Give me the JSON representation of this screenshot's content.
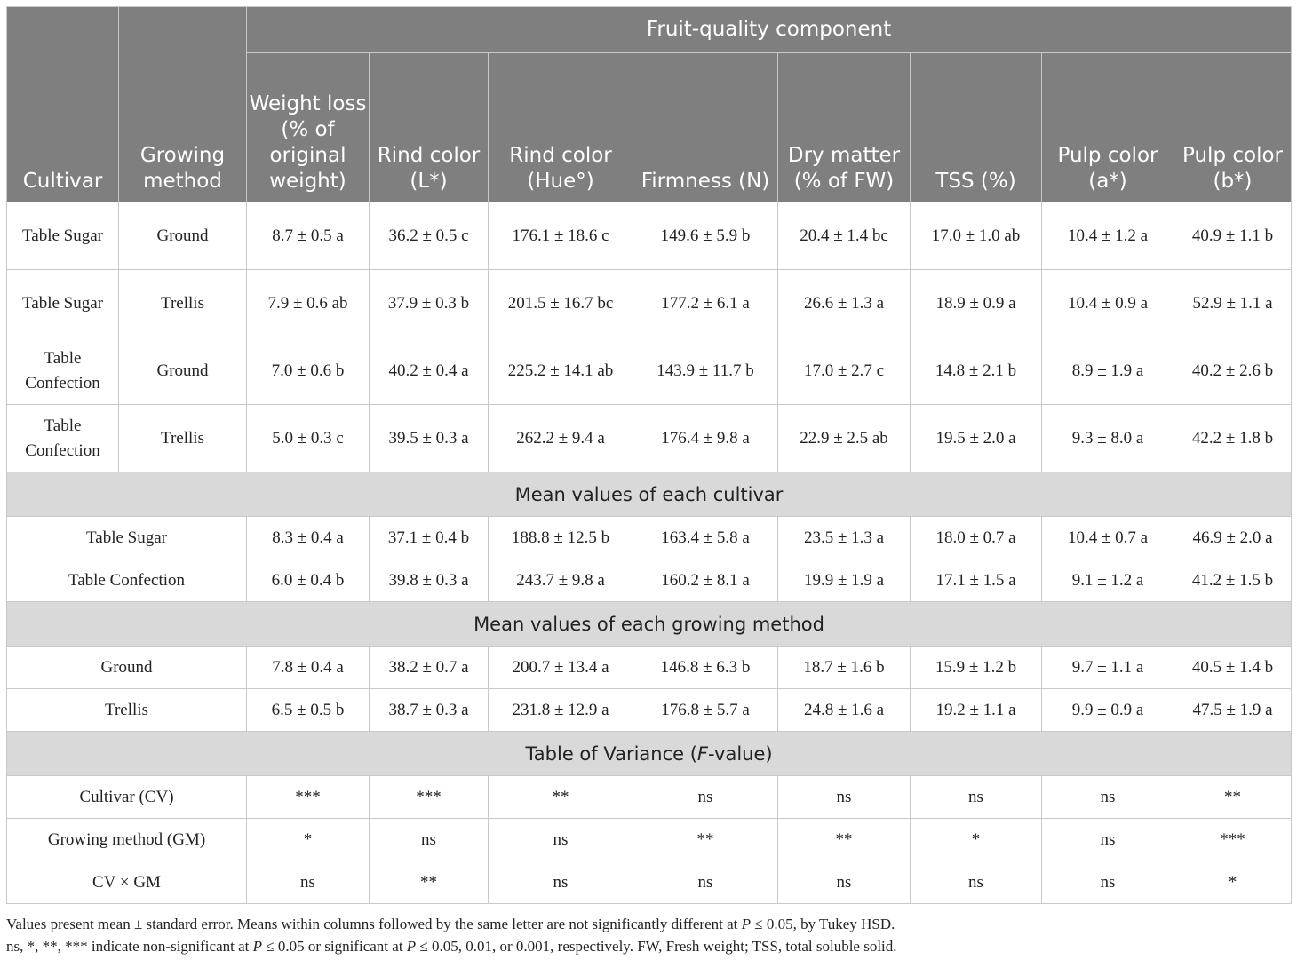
{
  "header": {
    "group_title": "Fruit-quality component",
    "columns": {
      "cultivar": "Cultivar",
      "growing_method": "Growing method",
      "weight_loss": "Weight loss (% of original weight)",
      "rind_l": "Rind color (L*)",
      "rind_hue": "Rind color (Hue°)",
      "firmness": "Firmness (N)",
      "dry_matter": "Dry matter (% of FW)",
      "tss": "TSS (%)",
      "pulp_a": "Pulp color (a*)",
      "pulp_b": "Pulp color (b*)"
    }
  },
  "treatments": [
    {
      "cultivar": "Table Sugar",
      "method": "Ground",
      "values": [
        "8.7 ± 0.5 a",
        "36.2 ± 0.5 c",
        "176.1 ± 18.6 c",
        "149.6 ± 5.9 b",
        "20.4 ± 1.4 bc",
        "17.0 ± 1.0 ab",
        "10.4 ± 1.2 a",
        "40.9 ± 1.1 b"
      ]
    },
    {
      "cultivar": "Table Sugar",
      "method": "Trellis",
      "values": [
        "7.9 ± 0.6 ab",
        "37.9 ± 0.3 b",
        "201.5 ± 16.7 bc",
        "177.2 ± 6.1 a",
        "26.6 ± 1.3 a",
        "18.9 ± 0.9 a",
        "10.4 ± 0.9 a",
        "52.9 ± 1.1 a"
      ]
    },
    {
      "cultivar": "Table Confection",
      "method": "Ground",
      "values": [
        "7.0 ± 0.6 b",
        "40.2 ± 0.4 a",
        "225.2 ± 14.1 ab",
        "143.9 ± 11.7 b",
        "17.0 ± 2.7 c",
        "14.8 ± 2.1 b",
        "8.9 ± 1.9 a",
        "40.2 ± 2.6 b"
      ]
    },
    {
      "cultivar": "Table Confection",
      "method": "Trellis",
      "values": [
        "5.0 ± 0.3 c",
        "39.5 ± 0.3 a",
        "262.2 ± 9.4 a",
        "176.4 ± 9.8 a",
        "22.9 ± 2.5 ab",
        "19.5 ± 2.0 a",
        "9.3 ± 8.0 a",
        "42.2 ± 1.8 b"
      ]
    }
  ],
  "cultivar_means": {
    "title": "Mean values of each cultivar",
    "rows": [
      {
        "label": "Table Sugar",
        "values": [
          "8.3 ± 0.4 a",
          "37.1 ± 0.4 b",
          "188.8 ± 12.5 b",
          "163.4 ± 5.8 a",
          "23.5 ± 1.3 a",
          "18.0 ± 0.7 a",
          "10.4 ± 0.7 a",
          "46.9 ± 2.0 a"
        ]
      },
      {
        "label": "Table Confection",
        "values": [
          "6.0 ± 0.4 b",
          "39.8 ± 0.3 a",
          "243.7 ± 9.8 a",
          "160.2 ± 8.1 a",
          "19.9 ± 1.9 a",
          "17.1 ± 1.5 a",
          "9.1 ± 1.2 a",
          "41.2 ± 1.5 b"
        ]
      }
    ]
  },
  "method_means": {
    "title": "Mean values of each growing method",
    "rows": [
      {
        "label": "Ground",
        "values": [
          "7.8 ± 0.4 a",
          "38.2 ± 0.7 a",
          "200.7 ± 13.4 a",
          "146.8 ± 6.3 b",
          "18.7 ± 1.6 b",
          "15.9 ± 1.2 b",
          "9.7 ± 1.1 a",
          "40.5 ± 1.4 b"
        ]
      },
      {
        "label": "Trellis",
        "values": [
          "6.5 ± 0.5 b",
          "38.7 ± 0.3 a",
          "231.8 ± 12.9 a",
          "176.8 ± 5.7 a",
          "24.8 ± 1.6 a",
          "19.2 ± 1.1 a",
          "9.9 ± 0.9 a",
          "47.5 ± 1.9 a"
        ]
      }
    ]
  },
  "variance": {
    "title_pre": "Table of Variance (",
    "title_italic": "F",
    "title_post": "-value)",
    "rows": [
      {
        "label": "Cultivar (CV)",
        "values": [
          "***",
          "***",
          "**",
          "ns",
          "ns",
          "ns",
          "ns",
          "**"
        ]
      },
      {
        "label": "Growing method (GM)",
        "values": [
          "*",
          "ns",
          "ns",
          "**",
          "**",
          "*",
          "ns",
          "***"
        ]
      },
      {
        "label": "CV × GM",
        "values": [
          "ns",
          "**",
          "ns",
          "ns",
          "ns",
          "ns",
          "ns",
          "*"
        ]
      }
    ]
  },
  "notes": {
    "line1_a": "Values present mean ± standard error. Means within columns followed by the same letter are not significantly different at ",
    "line1_p": "P",
    "line1_b": " ≤ 0.05, by Tukey HSD.",
    "line2_a": "ns, *, **, *** indicate non-significant at ",
    "line2_p1": "P",
    "line2_b": " ≤ 0.05 or significant at ",
    "line2_p2": "P",
    "line2_c": " ≤ 0.05, 0.01, or 0.001, respectively. FW, Fresh weight; TSS, total soluble solid."
  }
}
